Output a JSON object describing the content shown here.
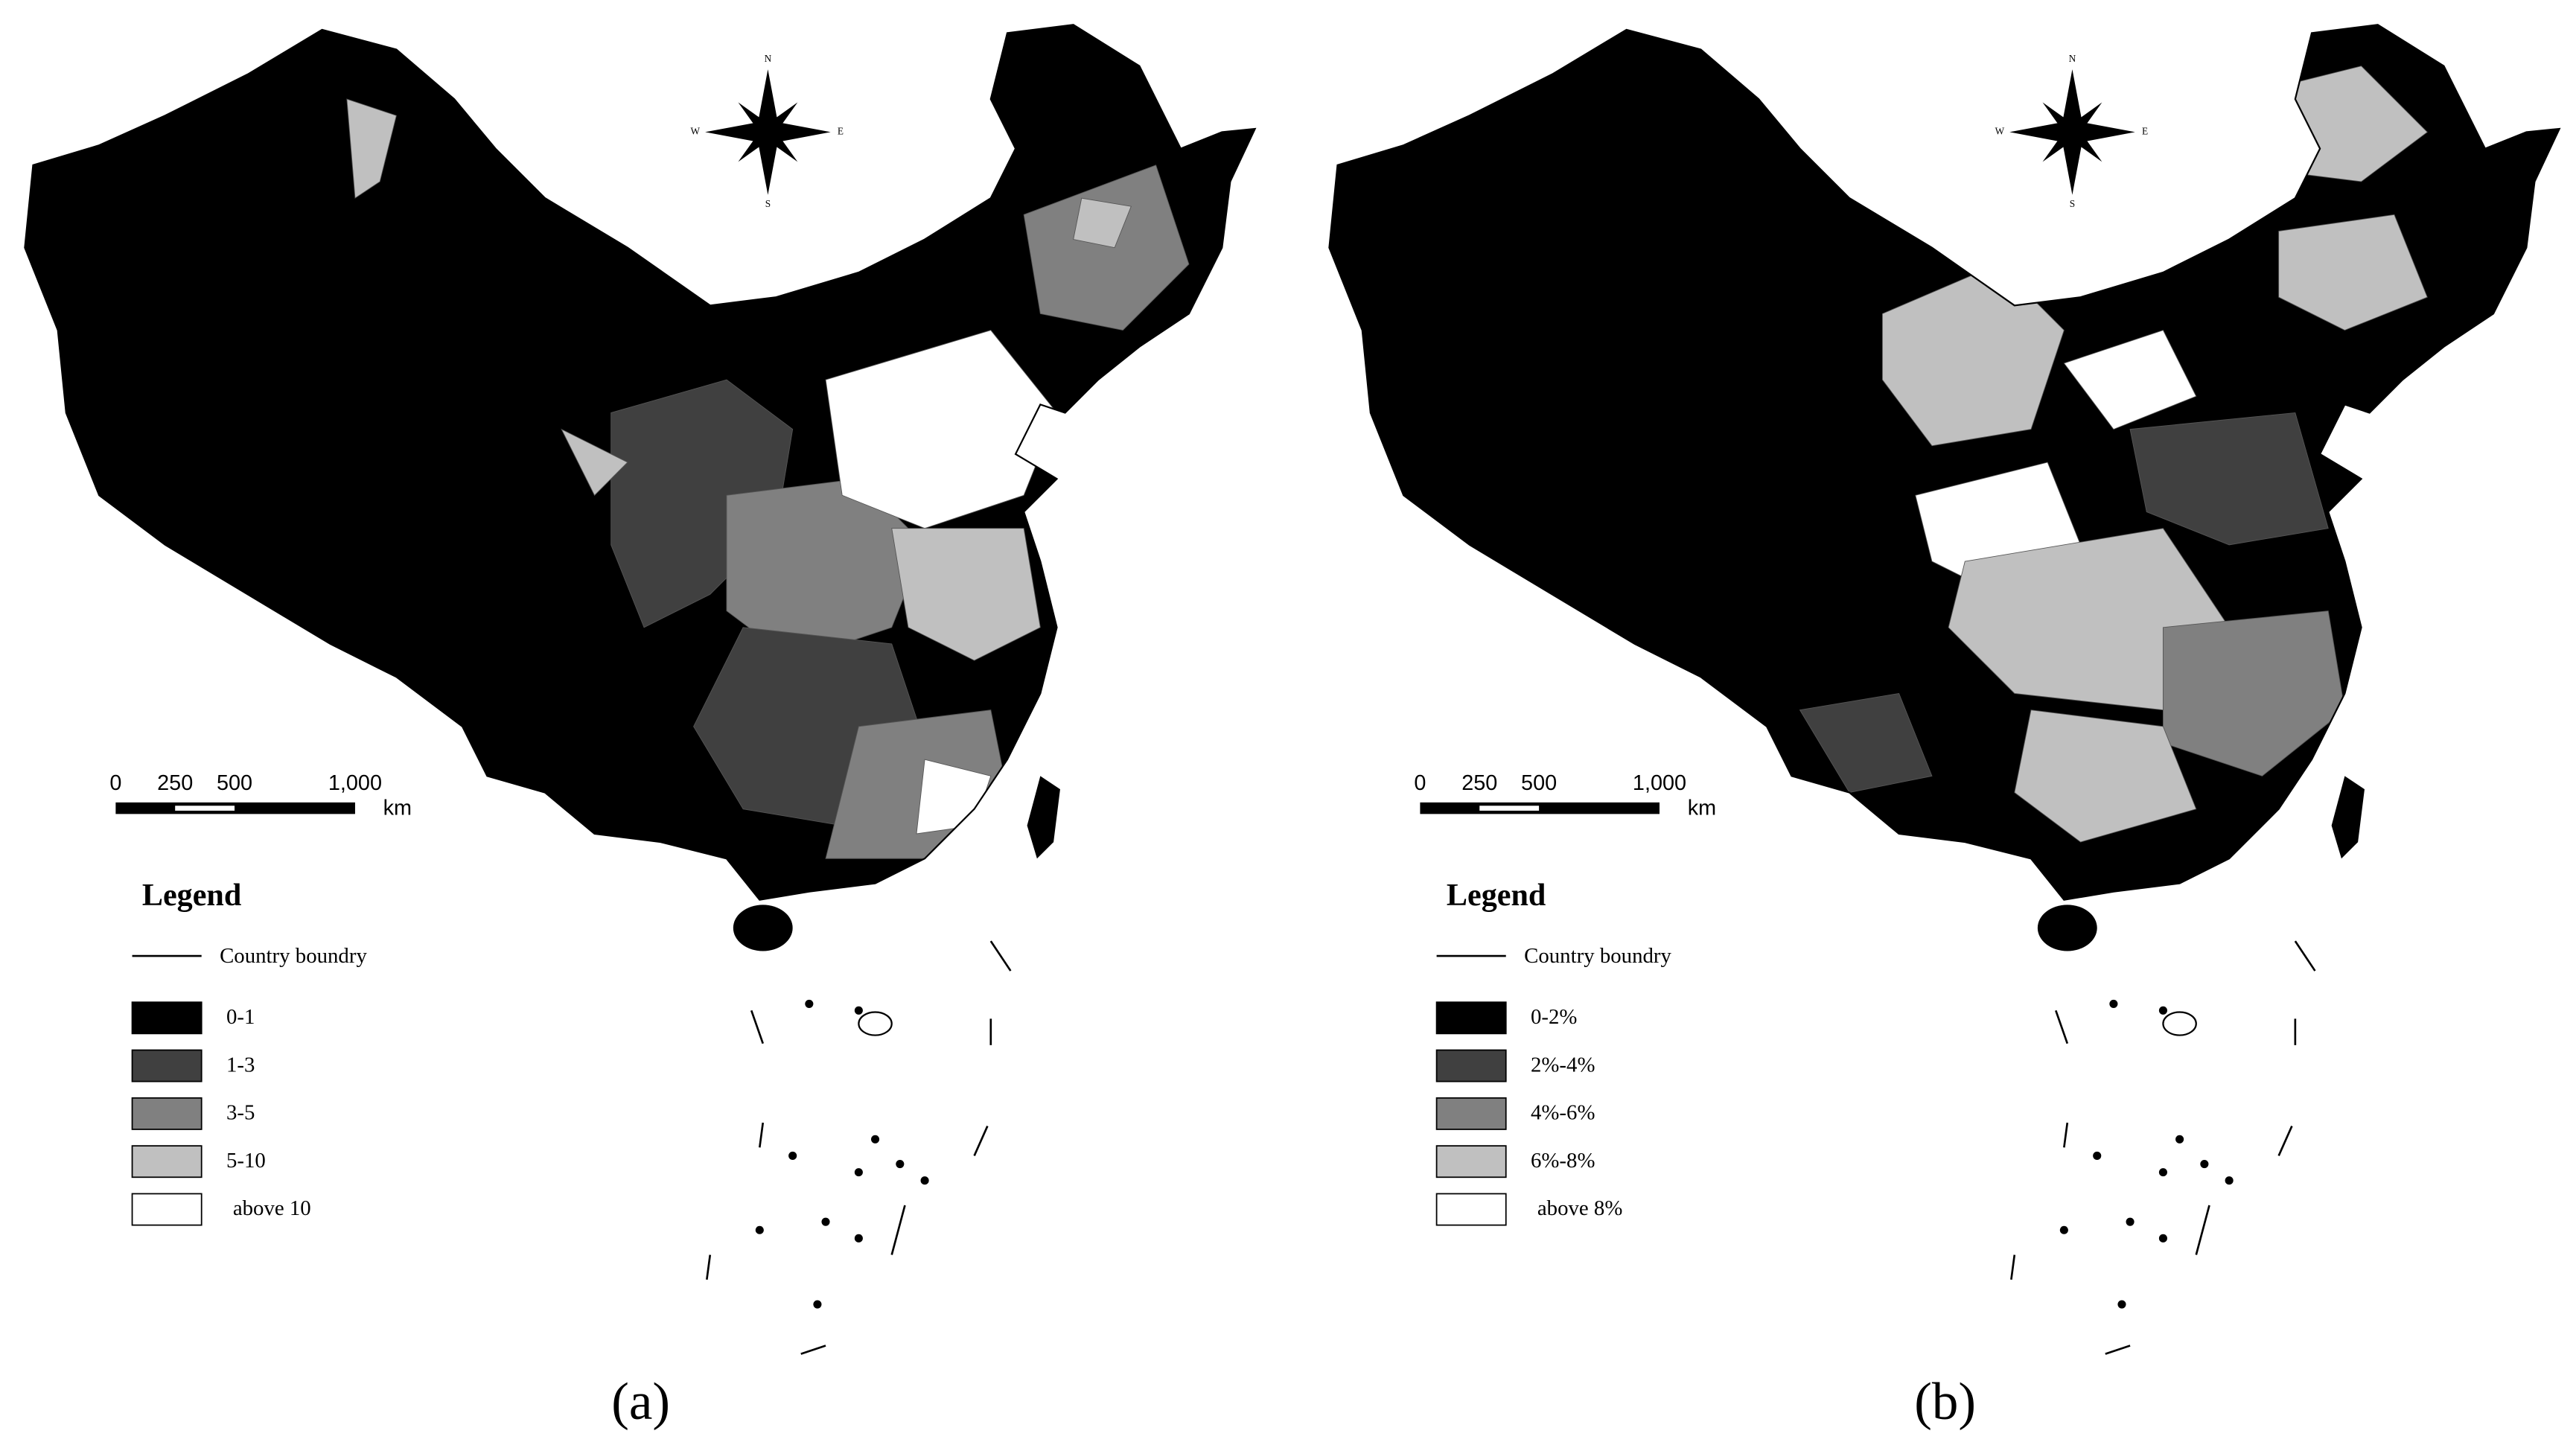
{
  "panels": [
    {
      "label": "(a)",
      "compass": {
        "n": "N",
        "w": "W",
        "e": "E",
        "s": "S"
      },
      "scale": {
        "ticks": [
          "0",
          "250",
          "500",
          "1,000"
        ],
        "unit": "km"
      },
      "legend": {
        "title": "Legend",
        "boundary": "Country boundry",
        "classes": [
          {
            "label": "0-1",
            "color": "#000000"
          },
          {
            "label": "1-3",
            "color": "#404040"
          },
          {
            "label": "3-5",
            "color": "#808080"
          },
          {
            "label": "5-10",
            "color": "#c0c0c0"
          },
          {
            "label": "above 10",
            "color": "#ffffff"
          }
        ]
      }
    },
    {
      "label": "(b)",
      "compass": {
        "n": "N",
        "w": "W",
        "e": "E",
        "s": "S"
      },
      "scale": {
        "ticks": [
          "0",
          "250",
          "500",
          "1,000"
        ],
        "unit": "km"
      },
      "legend": {
        "title": "Legend",
        "boundary": "Country boundry",
        "classes": [
          {
            "label": "0-2%",
            "color": "#000000"
          },
          {
            "label": "2%-4%",
            "color": "#404040"
          },
          {
            "label": "4%-6%",
            "color": "#808080"
          },
          {
            "label": "6%-8%",
            "color": "#c0c0c0"
          },
          {
            "label": "above 8%",
            "color": "#ffffff"
          }
        ]
      }
    }
  ]
}
